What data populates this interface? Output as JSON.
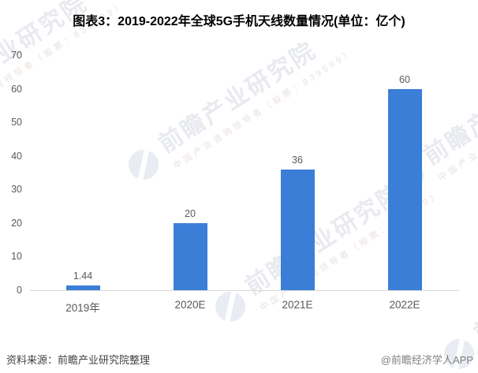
{
  "title": "图表3：2019-2022年全球5G手机天线数量情况(单位：亿个)",
  "chart_data": {
    "type": "bar",
    "categories": [
      "2019年",
      "2020E",
      "2021E",
      "2022E"
    ],
    "values": [
      1.44,
      20,
      36,
      60
    ],
    "value_labels": [
      "1.44",
      "20",
      "36",
      "60"
    ],
    "title": "图表3：2019-2022年全球5G手机天线数量情况(单位：亿个)",
    "xlabel": "",
    "ylabel": "",
    "ylim": [
      0,
      70
    ],
    "yticks": [
      "0",
      "10",
      "20",
      "30",
      "40",
      "50",
      "60",
      "70"
    ],
    "grid": false,
    "legend": false,
    "bar_color": "#3b7ed8"
  },
  "watermark": {
    "big": "前瞻产业研究院",
    "small": "中国产业咨询领导者（股票：839599）"
  },
  "footer": {
    "source": "资料来源：前瞻产业研究院整理",
    "credit": "@前瞻经济学人APP"
  }
}
